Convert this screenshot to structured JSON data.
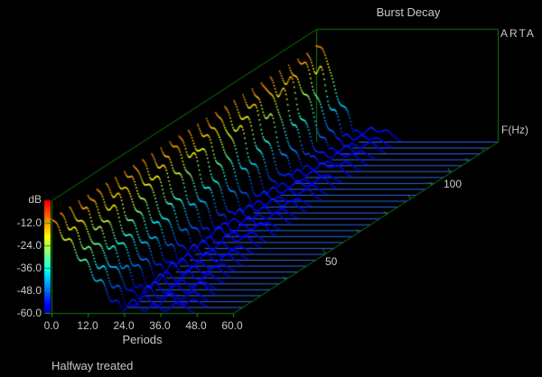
{
  "title": "Burst Decay",
  "brand": "ARTA",
  "note": "Halfway treated",
  "colors": {
    "background": "#000000",
    "grid": "#0e7a0e",
    "tick": "#14a014",
    "label": "#c8c8c8",
    "baseline": "#2b66e8"
  },
  "axes": {
    "db": {
      "label": "dB",
      "ticks": [
        "-12.0",
        "-24.0",
        "-36.0",
        "-48.0",
        "-60.0"
      ]
    },
    "periods": {
      "label": "Periods",
      "ticks": [
        "0.0",
        "12.0",
        "24.0",
        "36.0",
        "48.0",
        "60.0"
      ]
    },
    "freq": {
      "label": "F(Hz)",
      "ticks": [
        "50",
        "100"
      ]
    }
  },
  "chart_data": {
    "type": "waterfall",
    "title": "Burst Decay",
    "xlabel": "Periods",
    "xlim": [
      0,
      60
    ],
    "xticks": [
      0,
      12,
      24,
      36,
      48,
      60
    ],
    "zlabel": "dB",
    "zlim": [
      -60,
      0
    ],
    "zticks": [
      -12,
      -24,
      -36,
      -48,
      -60
    ],
    "ylabel": "F(Hz)",
    "yscale": "log",
    "ylim": [
      30,
      130
    ],
    "yticks_labeled": [
      50,
      100
    ],
    "yticks_minor": [
      40,
      50,
      60,
      70,
      80,
      90,
      100,
      110,
      120
    ],
    "colormap": "jet: 0 dB = red, -60 dB = blue",
    "legend_position": "colorbar-left",
    "grid": false,
    "start_level_db": -10,
    "floor_db": -60,
    "curve_columns": [
      "freq_hz",
      "decay_db_per_period",
      "ripple_amp_db",
      "ripple_period",
      "ripple_phase",
      "hump1_p",
      "hump1_db",
      "hump2_p",
      "hump2_db",
      "hump3_p",
      "hump3_db",
      "peak_p",
      "peak_db"
    ],
    "curves": [
      [
        30.0,
        2.1,
        2.4,
        5.2,
        0.0,
        27,
        7,
        34,
        5,
        42,
        6,
        0,
        0
      ],
      [
        31.6,
        2.15,
        2.7,
        4.8,
        1.3,
        28,
        6,
        36,
        7,
        44,
        4,
        0,
        0
      ],
      [
        33.2,
        2.2,
        2.2,
        5.6,
        2.6,
        26,
        8,
        33,
        5,
        41,
        5,
        0,
        0
      ],
      [
        34.9,
        2.3,
        2.9,
        4.5,
        3.9,
        25,
        7,
        32,
        6,
        40,
        7,
        0,
        0
      ],
      [
        36.7,
        2.35,
        2.4,
        5.0,
        5.2,
        24,
        8,
        31,
        5,
        38,
        4,
        0,
        0
      ],
      [
        38.6,
        2.4,
        2.6,
        5.4,
        0.8,
        23,
        6,
        30,
        7,
        37,
        5,
        6.0,
        3
      ],
      [
        40.6,
        2.5,
        2.3,
        4.7,
        2.1,
        22,
        8,
        29,
        6,
        36,
        6,
        4.5,
        3
      ],
      [
        42.7,
        2.55,
        2.8,
        5.1,
        3.4,
        22,
        7,
        28,
        5,
        35,
        4,
        5.5,
        4
      ],
      [
        44.9,
        2.6,
        2.5,
        4.6,
        4.7,
        21,
        6,
        27,
        7,
        34,
        6,
        3.8,
        3
      ],
      [
        47.2,
        2.7,
        2.2,
        5.3,
        0.2,
        20,
        8,
        26,
        5,
        33,
        5,
        5.0,
        4
      ],
      [
        49.7,
        2.75,
        2.9,
        4.9,
        1.5,
        20,
        7,
        26,
        6,
        32,
        4,
        6.3,
        4
      ],
      [
        52.3,
        2.8,
        2.4,
        5.5,
        2.8,
        19,
        6,
        25,
        7,
        31,
        6,
        4.2,
        3
      ],
      [
        55.0,
        2.9,
        2.6,
        4.4,
        4.1,
        19,
        8,
        24,
        5,
        30,
        5,
        5.6,
        4
      ],
      [
        57.8,
        2.95,
        2.3,
        5.0,
        5.4,
        18,
        7,
        24,
        6,
        30,
        7,
        3.6,
        5
      ],
      [
        60.8,
        3.0,
        2.8,
        4.8,
        0.6,
        18,
        6,
        23,
        7,
        29,
        4,
        4.9,
        4
      ],
      [
        64.0,
        3.1,
        2.5,
        5.2,
        1.9,
        17,
        8,
        23,
        5,
        29,
        6,
        6.1,
        5
      ],
      [
        67.3,
        3.1,
        2.2,
        4.6,
        3.2,
        17,
        7,
        22,
        6,
        28,
        5,
        4.4,
        4
      ],
      [
        70.8,
        3.2,
        2.9,
        5.4,
        4.5,
        17,
        6,
        22,
        7,
        28,
        6,
        5.2,
        5
      ],
      [
        74.5,
        3.2,
        2.4,
        4.5,
        5.8,
        16,
        8,
        21,
        5,
        27,
        4,
        3.9,
        4
      ],
      [
        78.3,
        3.25,
        2.7,
        5.1,
        1.0,
        16,
        7,
        21,
        6,
        27,
        6,
        5.8,
        5
      ],
      [
        82.4,
        3.3,
        2.3,
        4.9,
        2.3,
        16,
        6,
        21,
        7,
        26,
        5,
        5.5,
        6
      ],
      [
        86.7,
        3.3,
        2.8,
        5.3,
        3.6,
        15,
        8,
        20,
        5,
        26,
        6,
        4.8,
        7
      ],
      [
        91.2,
        3.35,
        2.5,
        4.7,
        4.9,
        15,
        7,
        20,
        6,
        25,
        4,
        6.2,
        6
      ],
      [
        95.9,
        3.35,
        2.2,
        5.5,
        0.4,
        15,
        6,
        20,
        7,
        25,
        6,
        3.9,
        8
      ],
      [
        100.9,
        3.4,
        2.9,
        4.4,
        1.7,
        14,
        8,
        19,
        5,
        25,
        5,
        5.0,
        7
      ],
      [
        106.1,
        3.4,
        2.4,
        5.0,
        3.0,
        14,
        7,
        19,
        6,
        24,
        6,
        4.2,
        8
      ],
      [
        111.6,
        3.45,
        2.7,
        4.8,
        4.3,
        14,
        6,
        19,
        7,
        24,
        4,
        5.8,
        6
      ],
      [
        117.4,
        3.45,
        2.3,
        5.2,
        5.6,
        13,
        8,
        18,
        5,
        24,
        6,
        3.5,
        8
      ],
      [
        123.5,
        3.5,
        2.8,
        4.6,
        0.9,
        13,
        7,
        18,
        6,
        23,
        5,
        4.6,
        7
      ],
      [
        130.0,
        3.5,
        2.5,
        5.4,
        2.2,
        13,
        6,
        18,
        7,
        23,
        6,
        2.4,
        9
      ]
    ]
  }
}
